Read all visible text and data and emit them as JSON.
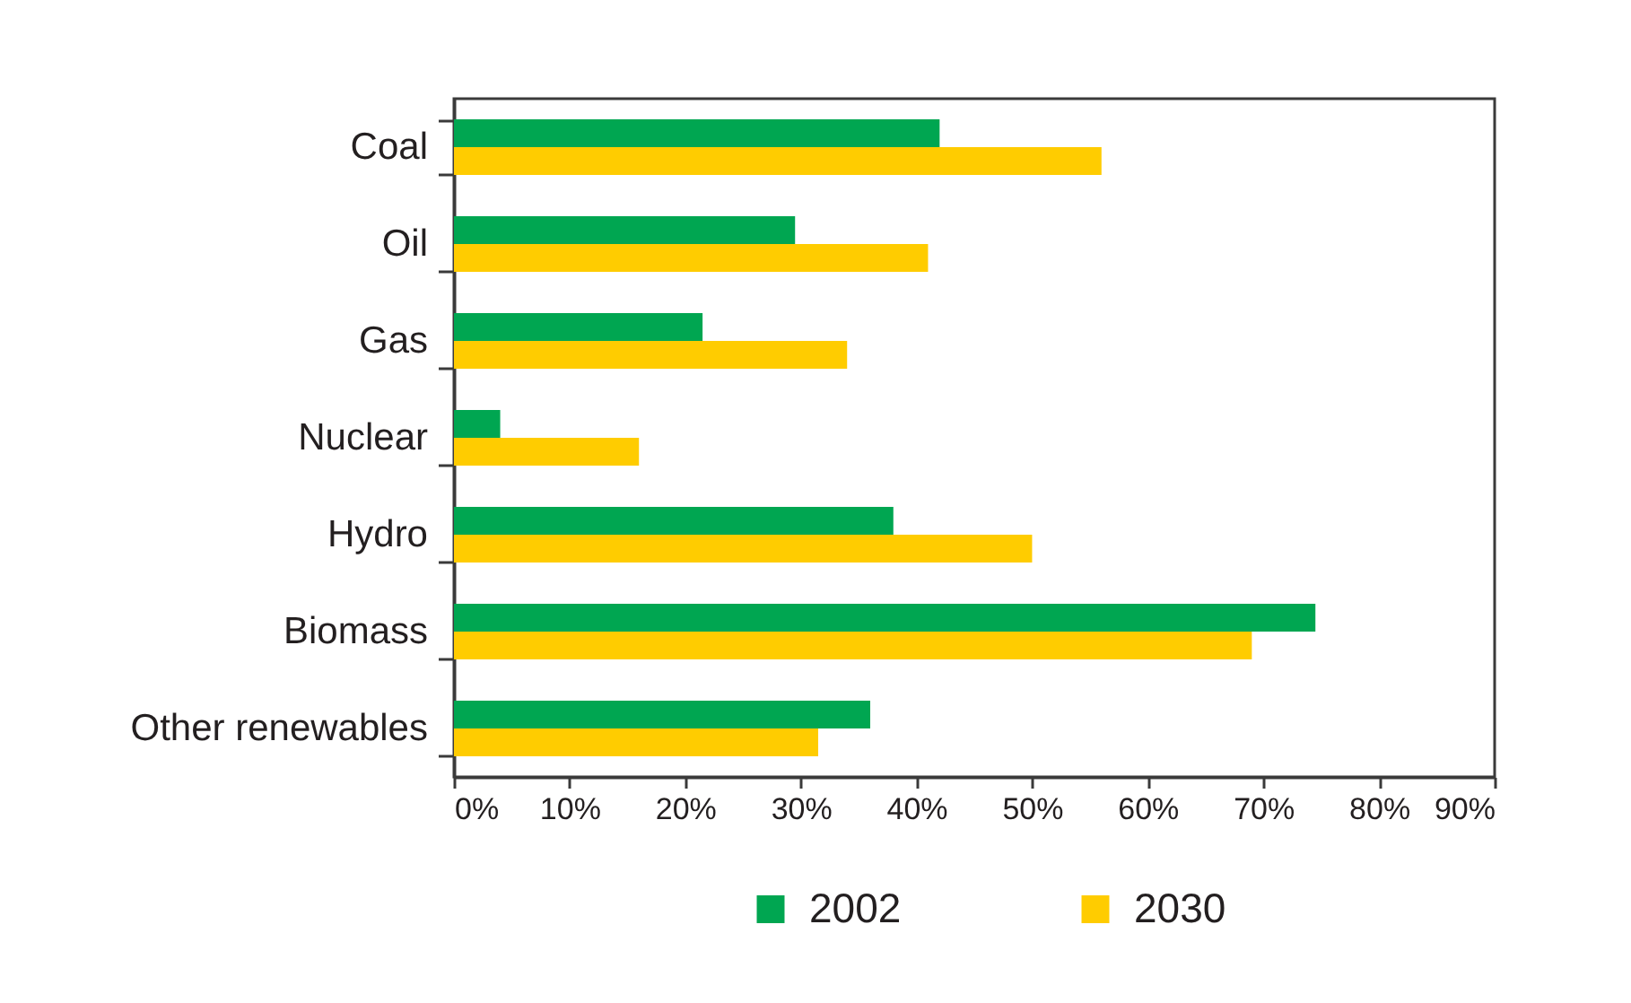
{
  "chart_data": {
    "type": "bar",
    "orientation": "horizontal",
    "categories": [
      "Coal",
      "Oil",
      "Gas",
      "Nuclear",
      "Hydro",
      "Biomass",
      "Other renewables"
    ],
    "series": [
      {
        "name": "2002",
        "color": "#00a651",
        "values": [
          42,
          29.5,
          21.5,
          4,
          38,
          74.5,
          36
        ]
      },
      {
        "name": "2030",
        "color": "#ffcc00",
        "values": [
          56,
          41,
          34,
          16,
          50,
          69,
          31.5
        ]
      }
    ],
    "xlim": [
      0,
      90
    ],
    "xticks": [
      {
        "value": 0,
        "label": "0%"
      },
      {
        "value": 10,
        "label": "10%"
      },
      {
        "value": 20,
        "label": "20%"
      },
      {
        "value": 30,
        "label": "30%"
      },
      {
        "value": 40,
        "label": "40%"
      },
      {
        "value": 50,
        "label": "50%"
      },
      {
        "value": 60,
        "label": "60%"
      },
      {
        "value": 70,
        "label": "70%"
      },
      {
        "value": 80,
        "label": "80%"
      },
      {
        "value": 90,
        "label": "90%"
      }
    ],
    "legend": "bottom",
    "grid": false
  }
}
